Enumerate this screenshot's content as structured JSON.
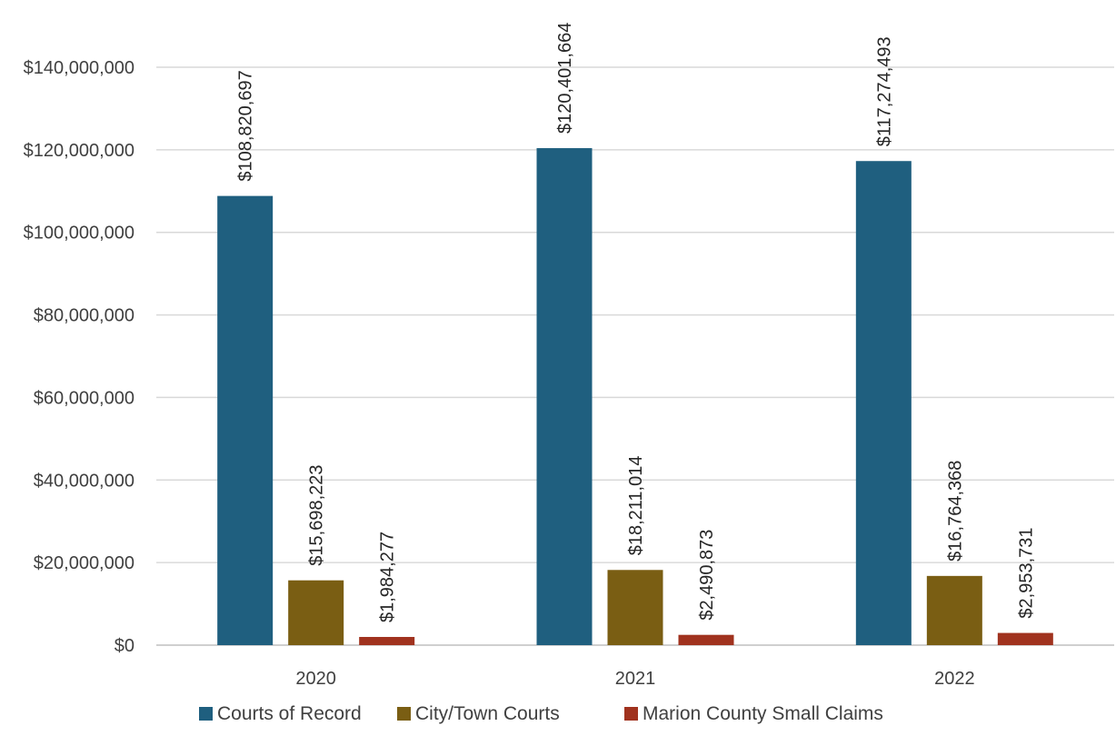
{
  "chart_data": {
    "type": "bar",
    "title": "",
    "xlabel": "",
    "ylabel": "",
    "categories": [
      "2020",
      "2021",
      "2022"
    ],
    "series": [
      {
        "name": "Courts of Record",
        "color": "#1f5f7f",
        "values": [
          108820697,
          120401664,
          117274493
        ],
        "labels": [
          "$108,820,697",
          "$120,401,664",
          "$117,274,493"
        ]
      },
      {
        "name": "City/Town Courts",
        "color": "#7a5e13",
        "values": [
          15698223,
          18211014,
          16764368
        ],
        "labels": [
          "$15,698,223",
          "$18,211,014",
          "$16,764,368"
        ]
      },
      {
        "name": "Marion County Small Claims",
        "color": "#a0321e",
        "values": [
          1984277,
          2490873,
          2953731
        ],
        "labels": [
          "$1,984,277",
          "$2,490,873",
          "$2,953,731"
        ]
      }
    ],
    "ylim": [
      0,
      140000000
    ],
    "yticks": [
      0,
      20000000,
      40000000,
      60000000,
      80000000,
      100000000,
      120000000,
      140000000
    ],
    "ytick_labels": [
      "$0",
      "$20,000,000",
      "$40,000,000",
      "$60,000,000",
      "$80,000,000",
      "$100,000,000",
      "$120,000,000",
      "$140,000,000"
    ],
    "grid": true,
    "legend_position": "bottom"
  }
}
